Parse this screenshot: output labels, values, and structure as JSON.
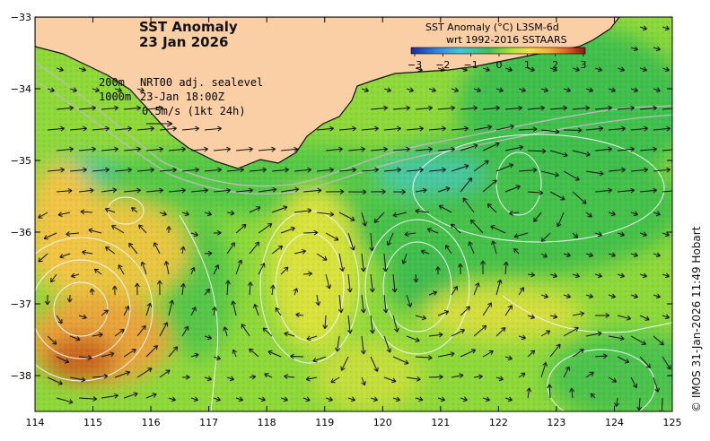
{
  "title": {
    "line1": "SST Anomaly",
    "line2": "23 Jan 2026"
  },
  "colorbar": {
    "title_line1": "SST Anomaly (°C) L3SM-6d",
    "title_line2": "wrt 1992-2016 SSTAARS",
    "ticks": [
      "−3",
      "−2",
      "−1",
      "0",
      "1",
      "2",
      "3"
    ],
    "colors": [
      "#1d2a9c",
      "#2f7fe0",
      "#43c6d8",
      "#3fbf55",
      "#a8e23a",
      "#f5e04a",
      "#f4a83a",
      "#d8601f",
      "#8a1616"
    ]
  },
  "legend": {
    "row1_depth": "200m",
    "row1_text": "NRT00 adj. sealevel",
    "row2_depth": "1000m",
    "row2_text": "23-Jan 18:00Z",
    "row3_text": "0.5m/s (1kt 24h)"
  },
  "axes": {
    "lon_ticks": [
      "114",
      "115",
      "116",
      "117",
      "118",
      "119",
      "120",
      "121",
      "122",
      "123",
      "124",
      "125"
    ],
    "lat_ticks": [
      "−33",
      "−34",
      "−35",
      "−36",
      "−37",
      "−38"
    ],
    "lon_range": [
      114,
      125
    ],
    "lat_range": [
      -38.5,
      -33
    ]
  },
  "colors": {
    "land": "#fbcfa6",
    "coast": "#111111",
    "contour": "#e8f6f4",
    "isobath": "#bcbcbc",
    "arrow": "#111111"
  },
  "copyright": "© IMOS 31-Jan-2026 11:49 Hobart"
}
